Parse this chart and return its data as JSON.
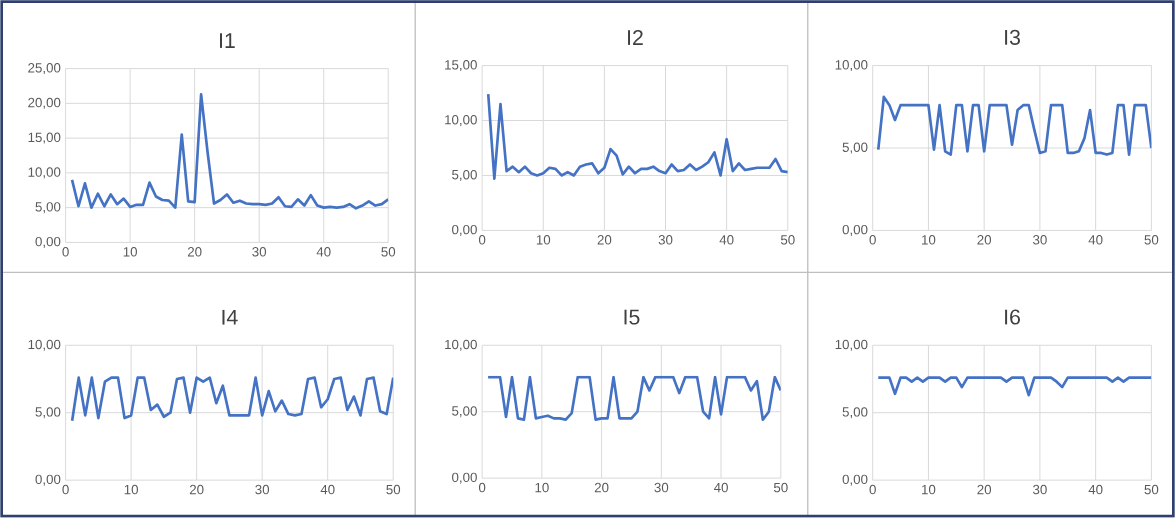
{
  "chart_data": [
    {
      "type": "line",
      "title": "I1",
      "color": "#4472c4",
      "grid": true,
      "xlim": [
        0,
        50
      ],
      "ylim": [
        0,
        25
      ],
      "xticks": [
        0,
        10,
        20,
        30,
        40,
        50
      ],
      "yticks": [
        {
          "value": 0,
          "label": "0,00"
        },
        {
          "value": 5,
          "label": "5,00"
        },
        {
          "value": 10,
          "label": "10,00"
        },
        {
          "value": 15,
          "label": "15,00"
        },
        {
          "value": 20,
          "label": "20,00"
        },
        {
          "value": 25,
          "label": "25,00"
        }
      ],
      "x": [
        1,
        2,
        3,
        4,
        5,
        6,
        7,
        8,
        9,
        10,
        11,
        12,
        13,
        14,
        15,
        16,
        17,
        18,
        19,
        20,
        21,
        22,
        23,
        24,
        25,
        26,
        27,
        28,
        29,
        30,
        31,
        32,
        33,
        34,
        35,
        36,
        37,
        38,
        39,
        40,
        41,
        42,
        43,
        44,
        45,
        46,
        47,
        48,
        49,
        50
      ],
      "values": [
        9.0,
        5.2,
        8.5,
        5.0,
        7.0,
        5.2,
        6.9,
        5.5,
        6.3,
        5.1,
        5.4,
        5.4,
        8.6,
        6.6,
        6.1,
        6.0,
        5.0,
        15.5,
        5.9,
        5.8,
        21.3,
        13.0,
        5.6,
        6.1,
        6.9,
        5.7,
        6.0,
        5.6,
        5.5,
        5.5,
        5.4,
        5.6,
        6.5,
        5.2,
        5.1,
        6.2,
        5.3,
        6.8,
        5.3,
        5.0,
        5.1,
        5.0,
        5.1,
        5.5,
        4.9,
        5.3,
        5.9,
        5.3,
        5.5,
        6.2
      ]
    },
    {
      "type": "line",
      "title": "I2",
      "color": "#4472c4",
      "grid": true,
      "xlim": [
        0,
        50
      ],
      "ylim": [
        0,
        15
      ],
      "xticks": [
        0,
        10,
        20,
        30,
        40,
        50
      ],
      "yticks": [
        {
          "value": 0,
          "label": "0,00"
        },
        {
          "value": 5,
          "label": "5,00"
        },
        {
          "value": 10,
          "label": "10,00"
        },
        {
          "value": 15,
          "label": "15,00"
        }
      ],
      "x": [
        1,
        2,
        3,
        4,
        5,
        6,
        7,
        8,
        9,
        10,
        11,
        12,
        13,
        14,
        15,
        16,
        17,
        18,
        19,
        20,
        21,
        22,
        23,
        24,
        25,
        26,
        27,
        28,
        29,
        30,
        31,
        32,
        33,
        34,
        35,
        36,
        37,
        38,
        39,
        40,
        41,
        42,
        43,
        44,
        45,
        46,
        47,
        48,
        49,
        50
      ],
      "values": [
        12.4,
        4.7,
        11.5,
        5.4,
        5.8,
        5.3,
        5.8,
        5.2,
        5.0,
        5.2,
        5.7,
        5.6,
        5.0,
        5.3,
        5.0,
        5.8,
        6.0,
        6.1,
        5.2,
        5.7,
        7.4,
        6.8,
        5.1,
        5.8,
        5.2,
        5.6,
        5.6,
        5.8,
        5.4,
        5.2,
        6.0,
        5.4,
        5.5,
        6.0,
        5.5,
        5.8,
        6.2,
        7.1,
        5.0,
        8.3,
        5.4,
        6.1,
        5.5,
        5.6,
        5.7,
        5.7,
        5.7,
        6.5,
        5.4,
        5.3
      ]
    },
    {
      "type": "line",
      "title": "I3",
      "color": "#4472c4",
      "grid": true,
      "xlim": [
        0,
        50
      ],
      "ylim": [
        0,
        10
      ],
      "xticks": [
        0,
        10,
        20,
        30,
        40,
        50
      ],
      "yticks": [
        {
          "value": 0,
          "label": "0,00"
        },
        {
          "value": 5,
          "label": "5,00"
        },
        {
          "value": 10,
          "label": "10,00"
        }
      ],
      "x": [
        1,
        2,
        3,
        4,
        5,
        6,
        7,
        8,
        9,
        10,
        11,
        12,
        13,
        14,
        15,
        16,
        17,
        18,
        19,
        20,
        21,
        22,
        23,
        24,
        25,
        26,
        27,
        28,
        29,
        30,
        31,
        32,
        33,
        34,
        35,
        36,
        37,
        38,
        39,
        40,
        41,
        42,
        43,
        44,
        45,
        46,
        47,
        48,
        49,
        50
      ],
      "values": [
        4.9,
        8.1,
        7.6,
        6.7,
        7.6,
        7.6,
        7.6,
        7.6,
        7.6,
        7.6,
        4.9,
        7.6,
        4.8,
        4.6,
        7.6,
        7.6,
        4.8,
        7.6,
        7.6,
        4.8,
        7.6,
        7.6,
        7.6,
        7.6,
        5.2,
        7.3,
        7.6,
        7.6,
        6.1,
        4.7,
        4.8,
        7.6,
        7.6,
        7.6,
        4.7,
        4.7,
        4.8,
        5.6,
        7.3,
        4.7,
        4.7,
        4.6,
        4.7,
        7.6,
        7.6,
        4.6,
        7.6,
        7.6,
        7.6,
        5.0
      ]
    },
    {
      "type": "line",
      "title": "I4",
      "color": "#4472c4",
      "grid": true,
      "xlim": [
        0,
        50
      ],
      "ylim": [
        0,
        10
      ],
      "xticks": [
        0,
        10,
        20,
        30,
        40,
        50
      ],
      "yticks": [
        {
          "value": 0,
          "label": "0,00"
        },
        {
          "value": 5,
          "label": "5,00"
        },
        {
          "value": 10,
          "label": "10,00"
        }
      ],
      "x": [
        1,
        2,
        3,
        4,
        5,
        6,
        7,
        8,
        9,
        10,
        11,
        12,
        13,
        14,
        15,
        16,
        17,
        18,
        19,
        20,
        21,
        22,
        23,
        24,
        25,
        26,
        27,
        28,
        29,
        30,
        31,
        32,
        33,
        34,
        35,
        36,
        37,
        38,
        39,
        40,
        41,
        42,
        43,
        44,
        45,
        46,
        47,
        48,
        49,
        50
      ],
      "values": [
        4.4,
        7.6,
        4.8,
        7.6,
        4.6,
        7.3,
        7.6,
        7.6,
        4.6,
        4.8,
        7.6,
        7.6,
        5.2,
        5.6,
        4.7,
        5.0,
        7.5,
        7.6,
        5.0,
        7.6,
        7.3,
        7.6,
        5.7,
        7.0,
        4.8,
        4.8,
        4.8,
        4.8,
        7.6,
        4.8,
        6.6,
        5.1,
        5.9,
        4.9,
        4.8,
        4.9,
        7.5,
        7.6,
        5.4,
        6.0,
        7.5,
        7.6,
        5.2,
        6.2,
        4.8,
        7.5,
        7.6,
        5.1,
        4.9,
        7.6
      ]
    },
    {
      "type": "line",
      "title": "I5",
      "color": "#4472c4",
      "grid": true,
      "xlim": [
        0,
        50
      ],
      "ylim": [
        0,
        10
      ],
      "xticks": [
        0,
        10,
        20,
        30,
        40,
        50
      ],
      "yticks": [
        {
          "value": 0,
          "label": "0,00"
        },
        {
          "value": 5,
          "label": "5,00"
        },
        {
          "value": 10,
          "label": "10,00"
        }
      ],
      "x": [
        1,
        2,
        3,
        4,
        5,
        6,
        7,
        8,
        9,
        10,
        11,
        12,
        13,
        14,
        15,
        16,
        17,
        18,
        19,
        20,
        21,
        22,
        23,
        24,
        25,
        26,
        27,
        28,
        29,
        30,
        31,
        32,
        33,
        34,
        35,
        36,
        37,
        38,
        39,
        40,
        41,
        42,
        43,
        44,
        45,
        46,
        47,
        48,
        49,
        50
      ],
      "values": [
        7.6,
        7.6,
        7.6,
        4.6,
        7.6,
        4.5,
        4.4,
        7.6,
        4.5,
        4.6,
        4.7,
        4.5,
        4.5,
        4.4,
        4.9,
        7.6,
        7.6,
        7.6,
        4.4,
        4.5,
        4.5,
        7.6,
        4.5,
        4.5,
        4.5,
        5.0,
        7.6,
        6.6,
        7.6,
        7.6,
        7.6,
        7.6,
        6.4,
        7.6,
        7.6,
        7.6,
        5.0,
        4.5,
        7.6,
        4.8,
        7.6,
        7.6,
        7.6,
        7.6,
        6.6,
        7.3,
        4.4,
        5.0,
        7.6,
        6.6
      ]
    },
    {
      "type": "line",
      "title": "I6",
      "color": "#4472c4",
      "grid": true,
      "xlim": [
        0,
        50
      ],
      "ylim": [
        0,
        10
      ],
      "xticks": [
        0,
        10,
        20,
        30,
        40,
        50
      ],
      "yticks": [
        {
          "value": 0,
          "label": "0,00"
        },
        {
          "value": 5,
          "label": "5,00"
        },
        {
          "value": 10,
          "label": "10,00"
        }
      ],
      "x": [
        1,
        2,
        3,
        4,
        5,
        6,
        7,
        8,
        9,
        10,
        11,
        12,
        13,
        14,
        15,
        16,
        17,
        18,
        19,
        20,
        21,
        22,
        23,
        24,
        25,
        26,
        27,
        28,
        29,
        30,
        31,
        32,
        33,
        34,
        35,
        36,
        37,
        38,
        39,
        40,
        41,
        42,
        43,
        44,
        45,
        46,
        47,
        48,
        49,
        50
      ],
      "values": [
        7.6,
        7.6,
        7.6,
        6.4,
        7.6,
        7.6,
        7.3,
        7.6,
        7.3,
        7.6,
        7.6,
        7.6,
        7.3,
        7.6,
        7.6,
        6.9,
        7.6,
        7.6,
        7.6,
        7.6,
        7.6,
        7.6,
        7.6,
        7.3,
        7.6,
        7.6,
        7.6,
        6.3,
        7.6,
        7.6,
        7.6,
        7.6,
        7.3,
        6.9,
        7.6,
        7.6,
        7.6,
        7.6,
        7.6,
        7.6,
        7.6,
        7.6,
        7.3,
        7.6,
        7.3,
        7.6,
        7.6,
        7.6,
        7.6,
        7.6
      ]
    }
  ]
}
